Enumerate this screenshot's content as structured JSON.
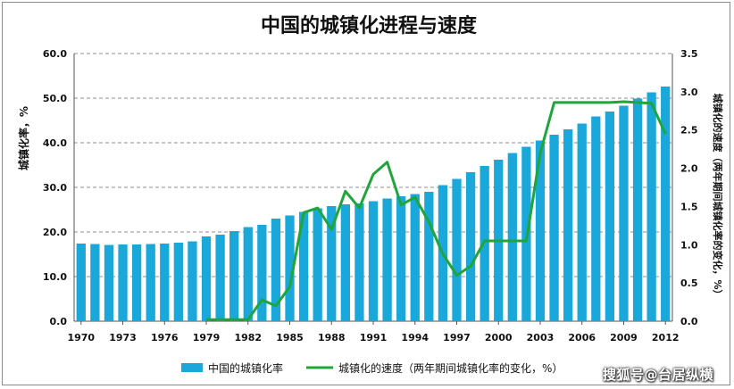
{
  "chart_data": {
    "type": "bar+line",
    "title": "中国的城镇化进程与速度",
    "ylabel_left": "城镇化率，%",
    "ylabel_right": "城镇化的速度（两年期间城镇化率的变化，%）",
    "ylim_left": [
      0,
      60
    ],
    "ylim_right": [
      0,
      3.5
    ],
    "yticks_left": [
      "0.0",
      "10.0",
      "20.0",
      "30.0",
      "40.0",
      "50.0",
      "60.0"
    ],
    "yticks_right": [
      "0.0",
      "0.5",
      "1.0",
      "1.5",
      "2.0",
      "2.5",
      "3.0",
      "3.5"
    ],
    "x": [
      1970,
      1971,
      1972,
      1973,
      1974,
      1975,
      1976,
      1977,
      1978,
      1979,
      1980,
      1981,
      1982,
      1983,
      1984,
      1985,
      1986,
      1987,
      1988,
      1989,
      1990,
      1991,
      1992,
      1993,
      1994,
      1995,
      1996,
      1997,
      1998,
      1999,
      2000,
      2001,
      2002,
      2003,
      2004,
      2005,
      2006,
      2007,
      2008,
      2009,
      2010,
      2011,
      2012
    ],
    "xtick_labels": [
      "1970",
      "1973",
      "1976",
      "1979",
      "1982",
      "1985",
      "1988",
      "1991",
      "1994",
      "1997",
      "2000",
      "2003",
      "2006",
      "2009",
      "2012"
    ],
    "grid": true,
    "legend_position": "bottom",
    "series": [
      {
        "name": "中国的城镇化率",
        "kind": "bar",
        "axis": "left",
        "color": "#1aa7d9",
        "values": [
          17.4,
          17.3,
          17.1,
          17.2,
          17.2,
          17.3,
          17.4,
          17.6,
          17.9,
          19.0,
          19.4,
          20.2,
          21.1,
          21.6,
          23.0,
          23.7,
          24.5,
          25.3,
          25.8,
          26.2,
          26.4,
          26.9,
          27.5,
          28.0,
          28.5,
          29.0,
          30.5,
          31.9,
          33.4,
          34.8,
          36.2,
          37.7,
          39.1,
          40.5,
          41.8,
          43.0,
          44.3,
          45.9,
          47.0,
          48.3,
          49.9,
          51.3,
          52.6
        ]
      },
      {
        "name": "城镇化的速度（两年期间城镇化率的变化，%）",
        "kind": "line",
        "axis": "right",
        "color": "#1fa53a",
        "x": [
          1979,
          1980,
          1981,
          1982,
          1983,
          1984,
          1985,
          1986,
          1987,
          1988,
          1989,
          1990,
          1991,
          1992,
          1993,
          1994,
          1995,
          1996,
          1997,
          1998,
          1999,
          2000,
          2001,
          2002,
          2003,
          2004,
          2005,
          2006,
          2007,
          2008,
          2009,
          2010,
          2011,
          2012
        ],
        "values": [
          0.02,
          0.02,
          0.02,
          0.02,
          0.28,
          0.2,
          0.45,
          1.42,
          1.48,
          1.2,
          1.7,
          1.48,
          1.92,
          2.08,
          1.52,
          1.62,
          1.3,
          0.88,
          0.6,
          0.72,
          1.05,
          1.05,
          1.05,
          1.05,
          2.2,
          2.86,
          2.86,
          2.86,
          2.86,
          2.86,
          2.87,
          2.86,
          2.85,
          2.45
        ]
      }
    ]
  },
  "watermark": "搜狐号@台居纵横"
}
